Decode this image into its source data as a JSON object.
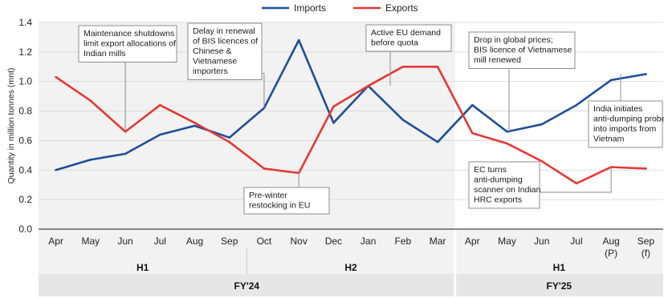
{
  "chart_data": {
    "type": "line",
    "title": "",
    "ylabel": "Quantity in million tonnes (mnt)",
    "xlabel": "",
    "ylim": [
      0,
      1.4
    ],
    "yticks": [
      "0.0",
      "0.2",
      "0.4",
      "0.6",
      "0.8",
      "1.0",
      "1.2",
      "1.4"
    ],
    "categories": [
      "Apr",
      "May",
      "Jun",
      "Jul",
      "Aug",
      "Sep",
      "Oct",
      "Nov",
      "Dec",
      "Jan",
      "Feb",
      "Mar",
      "Apr",
      "May",
      "Jun",
      "Jul",
      "Aug",
      "Sep"
    ],
    "category_sublabels": [
      "",
      "",
      "",
      "",
      "",
      "",
      "",
      "",
      "",
      "",
      "",
      "",
      "",
      "",
      "",
      "",
      "(P)",
      "(f)"
    ],
    "series": [
      {
        "name": "Imports",
        "color": "#1f4e9a",
        "values": [
          0.4,
          0.47,
          0.51,
          0.64,
          0.7,
          0.62,
          0.82,
          1.28,
          0.72,
          0.97,
          0.74,
          0.59,
          0.84,
          0.66,
          0.71,
          0.84,
          1.01,
          1.05
        ]
      },
      {
        "name": "Exports",
        "color": "#e53935",
        "values": [
          1.03,
          0.87,
          0.66,
          0.84,
          0.72,
          0.59,
          0.41,
          0.38,
          0.83,
          0.97,
          1.1,
          1.1,
          0.65,
          0.58,
          0.46,
          0.31,
          0.42,
          0.41
        ]
      }
    ],
    "legend_position": "top-center",
    "grid": true,
    "halves": [
      {
        "label": "H1",
        "start": 0,
        "end": 5
      },
      {
        "label": "H2",
        "start": 6,
        "end": 11
      },
      {
        "label": "H1",
        "start": 12,
        "end": 17
      }
    ],
    "years": [
      {
        "label": "FY'24",
        "start": 0,
        "end": 11
      },
      {
        "label": "FY'25",
        "start": 12,
        "end": 17
      }
    ],
    "annotations": [
      {
        "lines": [
          "Maintenance shutdowns",
          "limit export allocations of",
          "Indian mills"
        ],
        "point_index": 2,
        "series": "Exports"
      },
      {
        "lines": [
          "Delay in renewal",
          "of BIS licences of",
          "Chinese &",
          "Vietnamese",
          "importers"
        ],
        "point_index": 6,
        "series": "Imports"
      },
      {
        "lines": [
          "Active EU demand",
          "before quota"
        ],
        "point_index": 9,
        "series": "Exports"
      },
      {
        "lines": [
          "Drop in global prices;",
          "BIS licence of Vietnamese",
          "mill renewed"
        ],
        "point_index": 13,
        "series": "Imports"
      },
      {
        "lines": [
          "India initiates",
          "anti-dumping probe",
          "into imports from",
          "Vietnam"
        ],
        "point_index": 17,
        "series": "Imports"
      },
      {
        "lines": [
          "Pre-winter",
          "restocking in EU"
        ],
        "point_index": 7,
        "series": "Exports"
      },
      {
        "lines": [
          "EC turns",
          "anti-dumping",
          "scanner on Indian",
          "HRC exports"
        ],
        "point_index": 16,
        "series": "Exports"
      }
    ]
  }
}
